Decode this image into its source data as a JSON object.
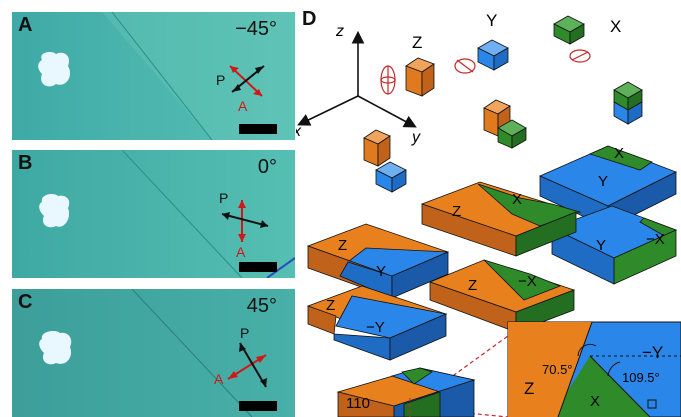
{
  "panels": [
    {
      "label": "A",
      "angle": "−45°",
      "p": "P",
      "a": "A"
    },
    {
      "label": "B",
      "angle": "0°",
      "p": "P",
      "a": "A"
    },
    {
      "label": "C",
      "angle": "45°",
      "p": "P",
      "a": "A"
    }
  ],
  "panel_d": {
    "label": "D",
    "axes": {
      "z": "z",
      "x": "x",
      "y": "y"
    },
    "cube_labels": {
      "z": "Z",
      "y": "Y",
      "x": "X"
    },
    "slab_labels": [
      "Z",
      "X",
      "Y",
      "X",
      "Y",
      "−X",
      "Z",
      "Y",
      "Z",
      "−X",
      "Z",
      "−Y"
    ],
    "zoom_labels": {
      "z": "Z",
      "neg_y": "−Y",
      "x": "X",
      "angle1": "70.5°",
      "angle2": "109.5°"
    },
    "bottom_label": "110"
  },
  "colors": {
    "orange": "#e8801e",
    "blue": "#2a86e8",
    "green": "#2f8a2a",
    "crystal": "#4fb8b0",
    "red": "#d01818"
  }
}
